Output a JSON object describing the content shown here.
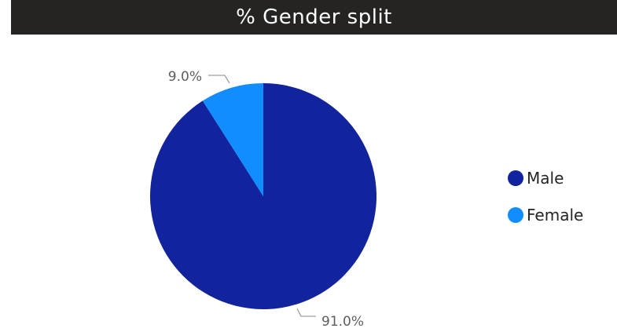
{
  "title": "% Gender split",
  "chart_data": {
    "type": "pie",
    "title": "% Gender split",
    "legend_position": "right",
    "slices": [
      {
        "name": "Male",
        "value": 91.0,
        "label": "91.0%",
        "color": "#12239e"
      },
      {
        "name": "Female",
        "value": 9.0,
        "label": "9.0%",
        "color": "#118dff"
      }
    ]
  },
  "legend": {
    "items": [
      {
        "label": "Male",
        "color": "#12239e"
      },
      {
        "label": "Female",
        "color": "#118dff"
      }
    ]
  },
  "colors": {
    "title_bar": "#252423",
    "title_text": "#ffffff",
    "label_text": "#605e5c",
    "leader_line": "#a19f9d"
  }
}
